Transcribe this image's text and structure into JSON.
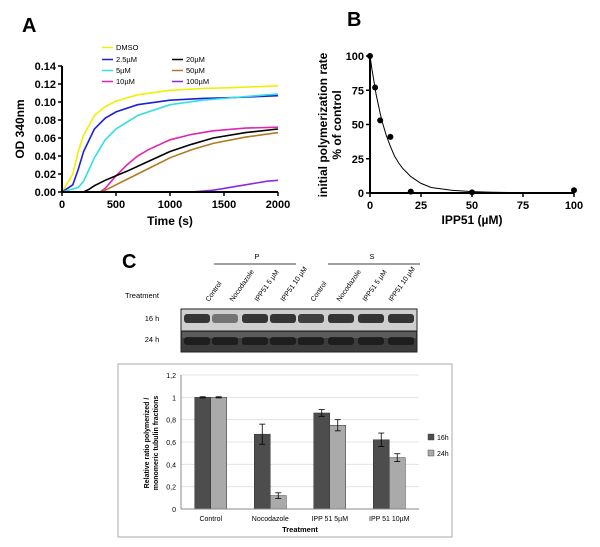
{
  "panels": {
    "a": "A",
    "b": "B",
    "c": "C"
  },
  "chart_data": [
    {
      "type": "line",
      "panel": "A",
      "xlabel": "Time (s)",
      "ylabel": "OD 340nm",
      "xlim": [
        0,
        2000
      ],
      "ylim": [
        0,
        0.14
      ],
      "xticks": [
        0,
        500,
        1000,
        1500,
        2000
      ],
      "yticks": [
        0.0,
        0.02,
        0.04,
        0.06,
        0.08,
        0.1,
        0.12,
        0.14
      ],
      "legend_position": "top-inside",
      "series": [
        {
          "name": "DMSO",
          "color": "#f0f000",
          "x": [
            0,
            100,
            150,
            200,
            300,
            400,
            500,
            700,
            1000,
            1300,
            1600,
            2000
          ],
          "y": [
            0,
            0.02,
            0.045,
            0.063,
            0.085,
            0.095,
            0.101,
            0.108,
            0.113,
            0.115,
            0.116,
            0.118
          ]
        },
        {
          "name": "2.5µM",
          "color": "#1f1fd6",
          "x": [
            0,
            100,
            150,
            200,
            300,
            400,
            500,
            700,
            1000,
            1300,
            1600,
            2000
          ],
          "y": [
            0,
            0.008,
            0.025,
            0.045,
            0.07,
            0.082,
            0.089,
            0.097,
            0.102,
            0.104,
            0.105,
            0.107
          ]
        },
        {
          "name": "5µM",
          "color": "#33e0e0",
          "x": [
            0,
            150,
            200,
            250,
            300,
            400,
            500,
            700,
            1000,
            1300,
            1600,
            2000
          ],
          "y": [
            0,
            0.005,
            0.012,
            0.025,
            0.038,
            0.058,
            0.07,
            0.085,
            0.097,
            0.102,
            0.105,
            0.109
          ]
        },
        {
          "name": "10µM",
          "color": "#e026b0",
          "x": [
            0,
            350,
            400,
            500,
            600,
            700,
            800,
            1000,
            1200,
            1400,
            1700,
            2000
          ],
          "y": [
            0,
            0,
            0.004,
            0.018,
            0.03,
            0.04,
            0.047,
            0.058,
            0.064,
            0.068,
            0.071,
            0.072
          ]
        },
        {
          "name": "20µM",
          "color": "#000000",
          "x": [
            0,
            200,
            250,
            300,
            400,
            500,
            600,
            800,
            1000,
            1200,
            1400,
            1700,
            2000
          ],
          "y": [
            0,
            0,
            0.003,
            0.007,
            0.013,
            0.018,
            0.023,
            0.034,
            0.045,
            0.053,
            0.06,
            0.066,
            0.07
          ]
        },
        {
          "name": "50µM",
          "color": "#b07a22",
          "x": [
            0,
            350,
            400,
            500,
            600,
            700,
            800,
            1000,
            1200,
            1400,
            1700,
            2000
          ],
          "y": [
            0,
            0,
            0.002,
            0.008,
            0.014,
            0.02,
            0.026,
            0.038,
            0.047,
            0.054,
            0.061,
            0.066
          ]
        },
        {
          "name": "100µM",
          "color": "#8a2be2",
          "x": [
            0,
            1200,
            1400,
            1500,
            1600,
            1700,
            1800,
            1900,
            2000
          ],
          "y": [
            0,
            0,
            0.002,
            0.004,
            0.006,
            0.008,
            0.01,
            0.012,
            0.013
          ]
        }
      ]
    },
    {
      "type": "scatter",
      "panel": "B",
      "xlabel": "IPP51 (µM)",
      "ylabel_lines": [
        "initial polymerization rate",
        "% of control"
      ],
      "xlim": [
        0,
        100
      ],
      "ylim": [
        0,
        100
      ],
      "xticks": [
        0,
        25,
        50,
        75,
        100
      ],
      "yticks": [
        0,
        25,
        50,
        75,
        100
      ],
      "points": {
        "x": [
          0,
          2.5,
          5,
          10,
          20,
          50,
          100
        ],
        "y": [
          100,
          77,
          53,
          41,
          1,
          0.5,
          2
        ]
      },
      "fit_curve": {
        "x": [
          0,
          1,
          2,
          3,
          4,
          5,
          6,
          8,
          10,
          12,
          14,
          16,
          18,
          20,
          25,
          30,
          40,
          50,
          60,
          70,
          80,
          90,
          100
        ],
        "y": [
          100,
          90,
          81,
          72,
          65,
          58,
          52,
          42,
          34,
          27,
          22,
          18,
          15,
          12,
          7,
          4,
          2,
          1,
          0.5,
          0.3,
          0.2,
          0.1,
          0
        ]
      }
    },
    {
      "type": "bar",
      "panel": "C",
      "xlabel": "Treatment",
      "ylabel_lines": [
        "Relative ratio polymerized /",
        "monomeric tubulin fractions"
      ],
      "ylim": [
        0,
        1.2
      ],
      "yticks": [
        "0",
        "0,2",
        "0,4",
        "0,6",
        "0,8",
        "1",
        "1,2"
      ],
      "ytick_values": [
        0,
        0.2,
        0.4,
        0.6,
        0.8,
        1,
        1.2
      ],
      "categories": [
        "Control",
        "Nocodazole",
        "IPP 51 5µM",
        "IPP 51 10µM"
      ],
      "legend_position": "right",
      "series": [
        {
          "name": "16h",
          "color": "#4d4d4d",
          "values": [
            1.0,
            0.67,
            0.86,
            0.62
          ],
          "errors": [
            0.005,
            0.09,
            0.03,
            0.06
          ]
        },
        {
          "name": "24h",
          "color": "#aaaaaa",
          "values": [
            1.0,
            0.12,
            0.75,
            0.46
          ],
          "errors": [
            0.005,
            0.025,
            0.05,
            0.035
          ]
        }
      ]
    }
  ],
  "blot": {
    "row_header": "Treatment",
    "group_labels": [
      "P",
      "S"
    ],
    "lanes": [
      "Control",
      "Nocodazole",
      "IPP51 5 µM",
      "IPP51 10 µM",
      "Control",
      "Nocodazole",
      "IPP51 5 µM",
      "IPP51 10 µM"
    ],
    "rows": [
      "16 h",
      "24 h"
    ]
  }
}
